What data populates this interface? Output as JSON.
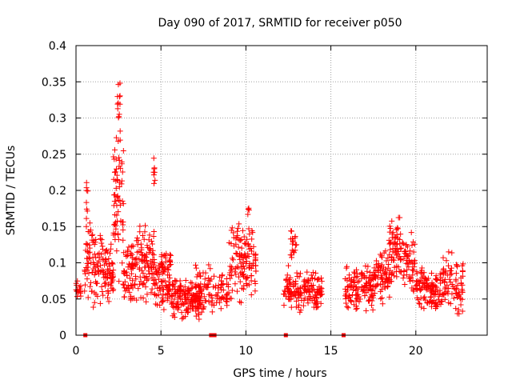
{
  "chart_data": {
    "type": "scatter",
    "title": "Day 090 of 2017, SRMTID for receiver p050",
    "xlabel": "GPS time / hours",
    "ylabel": "SRMTID / TECUs",
    "xlim": [
      0,
      24.2
    ],
    "ylim": [
      0,
      0.4
    ],
    "x_ticks": [
      0,
      5,
      10,
      15,
      20
    ],
    "y_ticks": [
      0,
      0.05,
      0.1,
      0.15,
      0.2,
      0.25,
      0.3,
      0.35,
      0.4
    ],
    "x_tick_labels": [
      "0",
      "5",
      "10",
      "15",
      "20"
    ],
    "y_tick_labels": [
      "0",
      "0.05",
      "0.1",
      "0.15",
      "0.2",
      "0.25",
      "0.3",
      "0.35",
      "0.4"
    ],
    "grid": true,
    "marker": "plus",
    "color": "#ff0000",
    "point_clusters": [
      {
        "x_range": [
          0.0,
          0.3
        ],
        "y_range": [
          0.05,
          0.08
        ],
        "count": 15
      },
      {
        "x_range": [
          0.5,
          1.6
        ],
        "y_range": [
          0.03,
          0.16
        ],
        "count": 90
      },
      {
        "x_range": [
          0.6,
          0.7
        ],
        "y_range": [
          0.15,
          0.22
        ],
        "count": 8
      },
      {
        "x_range": [
          1.6,
          2.2
        ],
        "y_range": [
          0.04,
          0.13
        ],
        "count": 60
      },
      {
        "x_range": [
          2.2,
          2.8
        ],
        "y_range": [
          0.06,
          0.3
        ],
        "count": 70
      },
      {
        "x_range": [
          2.4,
          2.6
        ],
        "y_range": [
          0.28,
          0.36
        ],
        "count": 12
      },
      {
        "x_range": [
          2.8,
          3.6
        ],
        "y_range": [
          0.04,
          0.14
        ],
        "count": 70
      },
      {
        "x_range": [
          3.6,
          4.6
        ],
        "y_range": [
          0.04,
          0.16
        ],
        "count": 90
      },
      {
        "x_range": [
          4.5,
          4.7
        ],
        "y_range": [
          0.19,
          0.26
        ],
        "count": 8
      },
      {
        "x_range": [
          4.6,
          5.6
        ],
        "y_range": [
          0.03,
          0.11
        ],
        "count": 70
      },
      {
        "x_range": [
          5.0,
          5.6
        ],
        "y_range": [
          0.07,
          0.12
        ],
        "count": 25
      },
      {
        "x_range": [
          5.6,
          7.4
        ],
        "y_range": [
          0.02,
          0.08
        ],
        "count": 160
      },
      {
        "x_range": [
          7.0,
          8.0
        ],
        "y_range": [
          0.03,
          0.1
        ],
        "count": 50
      },
      {
        "x_range": [
          8.0,
          9.0
        ],
        "y_range": [
          0.03,
          0.09
        ],
        "count": 50
      },
      {
        "x_range": [
          9.0,
          9.8
        ],
        "y_range": [
          0.04,
          0.16
        ],
        "count": 60
      },
      {
        "x_range": [
          9.8,
          10.6
        ],
        "y_range": [
          0.05,
          0.16
        ],
        "count": 70
      },
      {
        "x_range": [
          10.1,
          10.2
        ],
        "y_range": [
          0.16,
          0.19
        ],
        "count": 4
      },
      {
        "x_range": [
          12.2,
          12.7
        ],
        "y_range": [
          0.03,
          0.1
        ],
        "count": 40
      },
      {
        "x_range": [
          12.6,
          13.0
        ],
        "y_range": [
          0.08,
          0.16
        ],
        "count": 18
      },
      {
        "x_range": [
          12.7,
          14.5
        ],
        "y_range": [
          0.03,
          0.09
        ],
        "count": 120
      },
      {
        "x_range": [
          15.8,
          17.5
        ],
        "y_range": [
          0.03,
          0.1
        ],
        "count": 120
      },
      {
        "x_range": [
          17.5,
          18.5
        ],
        "y_range": [
          0.04,
          0.12
        ],
        "count": 80
      },
      {
        "x_range": [
          18.4,
          19.1
        ],
        "y_range": [
          0.06,
          0.17
        ],
        "count": 60
      },
      {
        "x_range": [
          19.1,
          20.0
        ],
        "y_range": [
          0.05,
          0.15
        ],
        "count": 60
      },
      {
        "x_range": [
          20.0,
          21.6
        ],
        "y_range": [
          0.03,
          0.1
        ],
        "count": 120
      },
      {
        "x_range": [
          21.6,
          22.2
        ],
        "y_range": [
          0.04,
          0.12
        ],
        "count": 40
      },
      {
        "x_range": [
          22.2,
          22.8
        ],
        "y_range": [
          0.02,
          0.11
        ],
        "count": 40
      }
    ],
    "baseline_markers": [
      {
        "x": 0.55,
        "y": 0
      },
      {
        "x": 7.95,
        "y": 0
      },
      {
        "x": 8.15,
        "y": 0
      },
      {
        "x": 12.35,
        "y": 0
      },
      {
        "x": 15.75,
        "y": 0
      }
    ]
  }
}
